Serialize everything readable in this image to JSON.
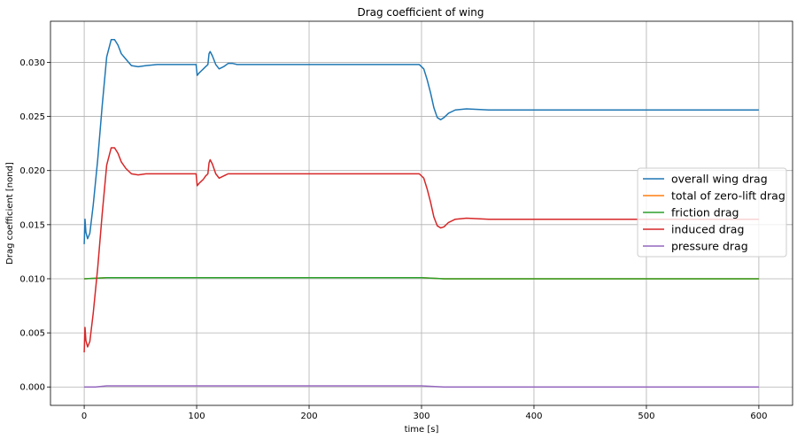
{
  "chart_data": {
    "type": "line",
    "title": "Drag coefficient of wing",
    "xlabel": "time [s]",
    "ylabel": "Drag coefficient [nond]",
    "xlim": [
      -30,
      630
    ],
    "ylim": [
      -0.0017,
      0.0338
    ],
    "xticks": [
      0,
      100,
      200,
      300,
      400,
      500,
      600
    ],
    "xtick_labels": [
      "0",
      "100",
      "200",
      "300",
      "400",
      "500",
      "600"
    ],
    "yticks": [
      0.0,
      0.005,
      0.01,
      0.015,
      0.02,
      0.025,
      0.03
    ],
    "ytick_labels": [
      "0.000",
      "0.005",
      "0.010",
      "0.015",
      "0.020",
      "0.025",
      "0.030"
    ],
    "grid": true,
    "legend_position": "center-right",
    "series": [
      {
        "name": "overall wing drag",
        "color": "#1f77b4",
        "x": [
          0,
          0.7,
          1.5,
          3,
          5,
          8,
          12,
          16,
          20,
          24,
          27,
          30,
          33,
          37,
          42,
          48,
          55,
          65,
          80,
          99.5,
          100.5,
          102,
          104,
          106,
          108,
          110,
          111,
          112,
          114,
          117,
          120,
          124,
          128,
          132,
          136,
          140,
          150,
          160,
          200,
          298,
          302,
          305,
          308,
          311,
          314,
          317,
          320,
          324,
          330,
          340,
          360,
          400,
          600
        ],
        "y": [
          0.0132,
          0.0155,
          0.0143,
          0.0137,
          0.0142,
          0.0168,
          0.021,
          0.026,
          0.0305,
          0.0321,
          0.0321,
          0.0316,
          0.0308,
          0.0303,
          0.0297,
          0.0296,
          0.0297,
          0.0298,
          0.0298,
          0.0298,
          0.0288,
          0.029,
          0.0292,
          0.0294,
          0.0296,
          0.0298,
          0.0308,
          0.031,
          0.0306,
          0.0298,
          0.0294,
          0.0296,
          0.0299,
          0.0299,
          0.0298,
          0.0298,
          0.0298,
          0.0298,
          0.0298,
          0.0298,
          0.0294,
          0.0284,
          0.0272,
          0.0258,
          0.0249,
          0.0247,
          0.0249,
          0.0253,
          0.0256,
          0.0257,
          0.0256,
          0.0256,
          0.0256
        ]
      },
      {
        "name": "total of zero-lift drag",
        "color": "#ff7f0e",
        "x": [
          0,
          20,
          30,
          100,
          110,
          300,
          320,
          600
        ],
        "y": [
          0.01,
          0.0101,
          0.0101,
          0.0101,
          0.0101,
          0.0101,
          0.01,
          0.01
        ]
      },
      {
        "name": "friction drag",
        "color": "#2ca02c",
        "x": [
          0,
          20,
          30,
          100,
          110,
          300,
          320,
          600
        ],
        "y": [
          0.01,
          0.0101,
          0.0101,
          0.0101,
          0.0101,
          0.0101,
          0.01,
          0.01
        ]
      },
      {
        "name": "induced drag",
        "color": "#d62728",
        "x": [
          0,
          0.7,
          1.5,
          3,
          5,
          8,
          12,
          16,
          20,
          24,
          27,
          30,
          33,
          37,
          42,
          48,
          55,
          65,
          80,
          99.5,
          100.5,
          102,
          104,
          106,
          108,
          110,
          111,
          112,
          114,
          117,
          120,
          124,
          128,
          132,
          136,
          140,
          150,
          160,
          200,
          298,
          302,
          305,
          308,
          311,
          314,
          317,
          320,
          324,
          330,
          340,
          360,
          400,
          600
        ],
        "y": [
          0.0032,
          0.0055,
          0.0043,
          0.0037,
          0.0042,
          0.0068,
          0.011,
          0.016,
          0.0205,
          0.0221,
          0.0221,
          0.0216,
          0.0208,
          0.0202,
          0.0197,
          0.0196,
          0.0197,
          0.0197,
          0.0197,
          0.0197,
          0.0186,
          0.0188,
          0.019,
          0.0192,
          0.0195,
          0.0197,
          0.0207,
          0.021,
          0.0206,
          0.0197,
          0.0193,
          0.0195,
          0.0197,
          0.0197,
          0.0197,
          0.0197,
          0.0197,
          0.0197,
          0.0197,
          0.0197,
          0.0193,
          0.0183,
          0.0171,
          0.0157,
          0.0149,
          0.0147,
          0.0148,
          0.0152,
          0.0155,
          0.0156,
          0.0155,
          0.0155,
          0.0155
        ]
      },
      {
        "name": "pressure drag",
        "color": "#9467bd",
        "x": [
          0,
          10,
          20,
          30,
          50,
          100,
          110,
          300,
          320,
          600
        ],
        "y": [
          0.0,
          0.0,
          0.0001,
          0.0001,
          0.0001,
          0.0001,
          0.0001,
          0.0001,
          0.0,
          0.0
        ]
      }
    ]
  }
}
